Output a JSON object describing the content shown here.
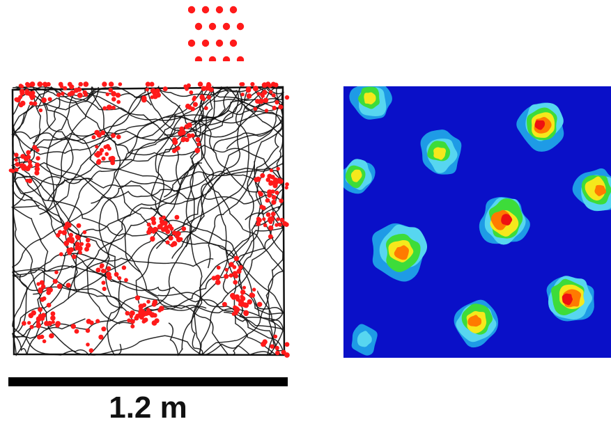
{
  "scale": {
    "label": "1.2 m"
  },
  "colors": {
    "spike": "#ff1a1a",
    "trajectory": "#111111",
    "map_background": "#0a10c8",
    "map_levels": [
      "#1e9be6",
      "#57d6f0",
      "#3ddc3a",
      "#f5e81c",
      "#ff7a00",
      "#ee1111"
    ]
  },
  "icons": {
    "grid_legend": "hexagonal-dot-pattern-icon"
  }
}
